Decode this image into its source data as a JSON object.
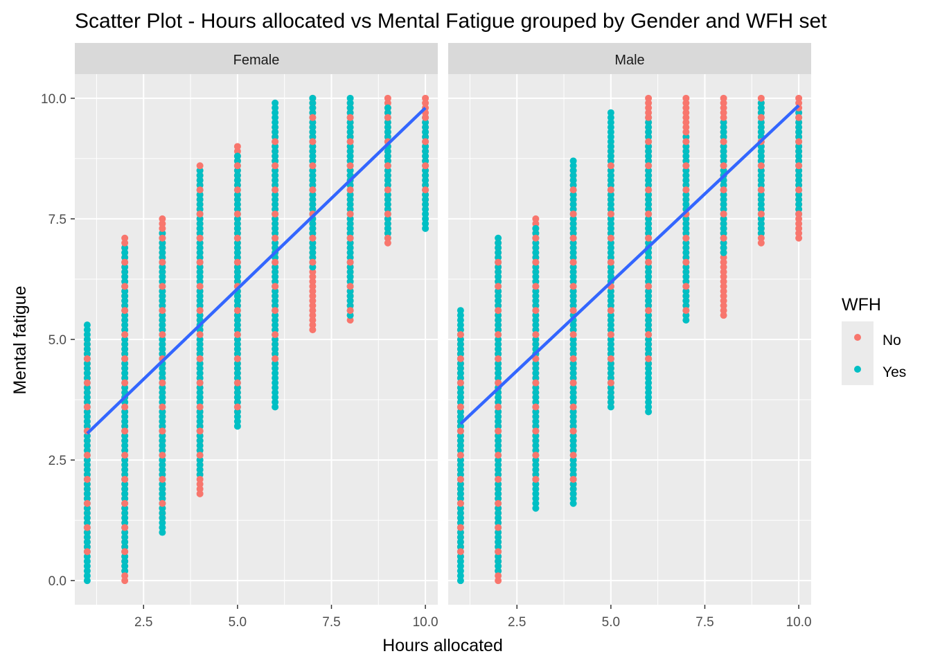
{
  "chart_data": {
    "type": "scatter",
    "title": "Scatter Plot - Hours allocated vs Mental Fatigue grouped by Gender and WFH set",
    "xlabel": "Hours allocated",
    "ylabel": "Mental fatigue",
    "xlim": [
      0.67,
      10.33
    ],
    "ylim": [
      -0.5,
      10.5
    ],
    "x_ticks": [
      "2.5",
      "5.0",
      "7.5",
      "10.0"
    ],
    "x_tick_values": [
      2.5,
      5.0,
      7.5,
      10.0
    ],
    "y_ticks": [
      "0.0",
      "2.5",
      "5.0",
      "7.5",
      "10.0"
    ],
    "y_tick_values": [
      0,
      2.5,
      5.0,
      7.5,
      10.0
    ],
    "grid": true,
    "legend": {
      "title": "WFH",
      "position": "right",
      "entries": [
        {
          "label": "No",
          "color": "#F8766D"
        },
        {
          "label": "Yes",
          "color": "#00BFC4"
        }
      ]
    },
    "trend_color": "#3366FF",
    "panels": [
      {
        "label": "Female",
        "trend": {
          "x": [
            1,
            10
          ],
          "y": [
            3.05,
            9.8
          ]
        },
        "strips": [
          {
            "x": 1,
            "yes": [
              0.0,
              5.3
            ],
            "no": [
              0.6,
              5.0
            ]
          },
          {
            "x": 2,
            "yes": [
              0.2,
              6.9
            ],
            "no": [
              0.0,
              7.1
            ]
          },
          {
            "x": 3,
            "yes": [
              1.0,
              7.2
            ],
            "no": [
              1.3,
              7.5
            ]
          },
          {
            "x": 4,
            "yes": [
              2.2,
              8.5
            ],
            "no": [
              1.8,
              8.6
            ]
          },
          {
            "x": 5,
            "yes": [
              3.2,
              8.8
            ],
            "no": [
              3.5,
              9.0
            ]
          },
          {
            "x": 6,
            "yes": [
              3.6,
              9.9
            ],
            "no": [
              4.5,
              9.4
            ]
          },
          {
            "x": 7,
            "yes": [
              6.5,
              10.0
            ],
            "no": [
              5.2,
              10.0
            ]
          },
          {
            "x": 8,
            "yes": [
              5.5,
              10.0
            ],
            "no": [
              5.4,
              9.9
            ]
          },
          {
            "x": 9,
            "yes": [
              7.1,
              9.8
            ],
            "no": [
              7.0,
              10.0
            ]
          },
          {
            "x": 10,
            "yes": [
              7.3,
              9.6
            ],
            "no": [
              7.8,
              10.0
            ]
          }
        ]
      },
      {
        "label": "Male",
        "trend": {
          "x": [
            1,
            10
          ],
          "y": [
            3.25,
            9.85
          ]
        },
        "strips": [
          {
            "x": 1,
            "yes": [
              0.0,
              5.6
            ],
            "no": [
              0.5,
              5.2
            ]
          },
          {
            "x": 2,
            "yes": [
              0.2,
              7.1
            ],
            "no": [
              0.0,
              7.0
            ]
          },
          {
            "x": 3,
            "yes": [
              1.5,
              7.3
            ],
            "no": [
              2.0,
              7.5
            ]
          },
          {
            "x": 4,
            "yes": [
              1.6,
              8.7
            ],
            "no": [
              1.8,
              8.5
            ]
          },
          {
            "x": 5,
            "yes": [
              3.6,
              9.7
            ],
            "no": [
              3.7,
              9.0
            ]
          },
          {
            "x": 6,
            "yes": [
              3.5,
              9.6
            ],
            "no": [
              4.5,
              10.0
            ]
          },
          {
            "x": 7,
            "yes": [
              5.4,
              9.2
            ],
            "no": [
              5.5,
              10.0
            ]
          },
          {
            "x": 8,
            "yes": [
              6.8,
              9.5
            ],
            "no": [
              5.5,
              10.0
            ]
          },
          {
            "x": 9,
            "yes": [
              7.2,
              9.9
            ],
            "no": [
              7.0,
              10.0
            ]
          },
          {
            "x": 10,
            "yes": [
              7.6,
              9.7
            ],
            "no": [
              7.1,
              10.0
            ]
          }
        ]
      }
    ]
  }
}
